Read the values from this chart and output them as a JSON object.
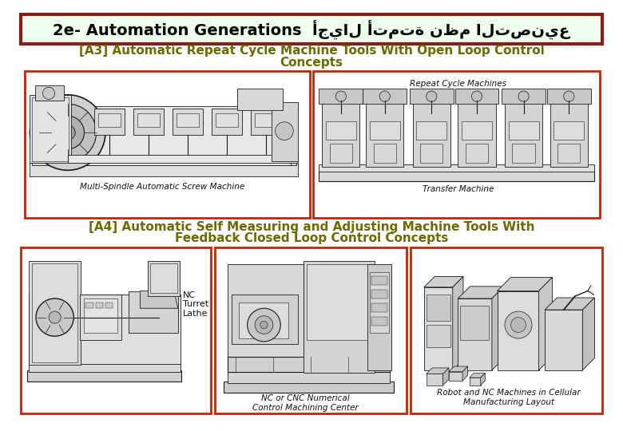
{
  "title_en": "2e- Automation Generations",
  "title_ar": "أجيال أتمتة نظم التصنيع",
  "title_bg": "#eeffee",
  "title_border": "#8b1a1a",
  "section_a3_line1": "[A3] Automatic Repeat Cycle Machine Tools With Open Loop Control",
  "section_a3_line2": "Concepts",
  "section_a4_line1": "[A4] Automatic Self Measuring and Adjusting Machine Tools With",
  "section_a4_line2": "Feedback Closed Loop Control Concepts",
  "img1_caption": "Multi-Spindle Automatic Screw Machine",
  "img2_top_label": "Repeat Cycle Machines",
  "img2_caption": "Transfer Machine",
  "img3_nc_label": "NC\nTurret\nLathe",
  "img4_caption": "NC or CNC Numerical\nControl Machining Center",
  "img5_caption": "Robot and NC Machines in Cellular\nManufacturing Layout",
  "text_color_section": "#6b6b00",
  "text_color_title": "#000000",
  "border_color": "#cc2200",
  "bg_color": "#ffffff",
  "image_bg": "#ffffff",
  "sketch_color": "#222222",
  "sketch_lw": 0.7
}
